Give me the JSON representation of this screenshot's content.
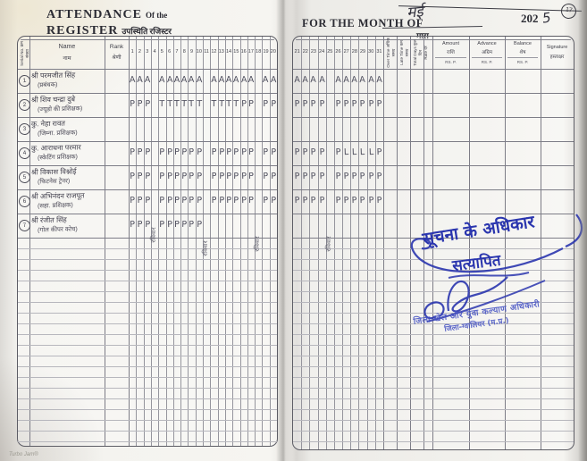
{
  "meta": {
    "page_number": "17"
  },
  "left_page": {
    "title_line1_big": "ATTENDANCE",
    "title_line1_small": "Of the",
    "title_line2_big": "REGISTER",
    "title_line2_hi": "उपस्थिति रजिस्टर",
    "header": {
      "serial_en": "Serial No.",
      "serial_hi": "क्रम संख्या",
      "name_en": "Name",
      "name_hi": "नाम",
      "rank_en": "Rank",
      "rank_hi": "श्रेणी",
      "days": [
        "1",
        "2",
        "3",
        "4",
        "5",
        "6",
        "7",
        "8",
        "9",
        "10",
        "11",
        "12",
        "13",
        "14",
        "15",
        "16",
        "17",
        "18",
        "19",
        "20"
      ]
    },
    "sunday_label": "रविवार",
    "rows": [
      {
        "serial": "1",
        "name": "श्री परमजीत सिंह",
        "role": "(प्रबंधक)",
        "marks": [
          "A",
          "A",
          "A",
          "",
          "A",
          "A",
          "A",
          "A",
          "A",
          "A",
          "",
          "A",
          "A",
          "A",
          "A",
          "A",
          "A",
          "",
          "A",
          "A"
        ]
      },
      {
        "serial": "2",
        "name": "श्री शिव चन्द्रा दुबे",
        "role": "(ज्यूडो की प्रशिक्षक)",
        "marks": [
          "P",
          "P",
          "P",
          "",
          "T",
          "T",
          "T",
          "T",
          "T",
          "T",
          "",
          "T",
          "T",
          "T",
          "T",
          "P",
          "P",
          "",
          "P",
          "P"
        ]
      },
      {
        "serial": "3",
        "name": "कु. नेहा रावत",
        "role": "(जिम्ना. प्रशिक्षक)",
        "marks": [
          "",
          "",
          "",
          "",
          "",
          "",
          "",
          "",
          "",
          "",
          "",
          "",
          "",
          "",
          "",
          "",
          "",
          "",
          "",
          ""
        ]
      },
      {
        "serial": "4",
        "name": "कु. आराधना परमार",
        "role": "(स्केटिंग प्रशिक्षक)",
        "marks": [
          "P",
          "P",
          "P",
          "",
          "P",
          "P",
          "P",
          "P",
          "P",
          "P",
          "",
          "P",
          "P",
          "P",
          "P",
          "P",
          "P",
          "",
          "P",
          "P"
        ]
      },
      {
        "serial": "5",
        "name": "श्री विकास विश्नोई",
        "role": "(फिटनेस ट्रेनर)",
        "marks": [
          "P",
          "P",
          "P",
          "",
          "P",
          "P",
          "P",
          "P",
          "P",
          "P",
          "",
          "P",
          "P",
          "P",
          "P",
          "P",
          "P",
          "",
          "P",
          "P"
        ]
      },
      {
        "serial": "6",
        "name": "श्री अभिनंदन राजपूत",
        "role": "(सहा. प्रशिक्षक)",
        "marks": [
          "P",
          "P",
          "P",
          "",
          "P",
          "P",
          "P",
          "P",
          "P",
          "P",
          "",
          "P",
          "P",
          "P",
          "P",
          "P",
          "P",
          "",
          "P",
          "P"
        ]
      },
      {
        "serial": "7",
        "name": "श्री रंजीत सिंह",
        "role": "(गोल कीपर कोच)",
        "marks": [
          "P",
          "P",
          "P",
          "",
          "P",
          "P",
          "P",
          "P",
          "P",
          "P",
          "",
          "",
          "",
          "",
          "",
          "",
          "",
          "",
          "",
          ""
        ]
      }
    ]
  },
  "right_page": {
    "title": "FOR THE MONTH OF",
    "month_value": "मई",
    "month_label": "मास",
    "year_printed": "202",
    "year_written": "5",
    "header": {
      "days": [
        "21",
        "22",
        "23",
        "24",
        "25",
        "26",
        "27",
        "28",
        "29",
        "30",
        "31"
      ],
      "over_time_en": "Over Time",
      "over_time_hi": "अधिक समय",
      "late_time_en": "Late Time",
      "late_time_hi": "कम समय",
      "total_days_en": "Total Days",
      "total_days_hi": "कुल दिन",
      "rate_en": "Rate",
      "rate_hi": "दर",
      "amount_en": "Amount",
      "amount_hi": "राशि",
      "amount_sub": "RS.   P.",
      "advance_en": "Advance",
      "advance_hi": "अग्रिम",
      "advance_sub": "RS.   P.",
      "balance_en": "Balance",
      "balance_hi": "शेष",
      "balance_sub": "RS.   P.",
      "signature_en": "Signature",
      "signature_hi": "हस्ताक्षर"
    },
    "sunday_label": "रविवार",
    "rows": [
      {
        "marks": [
          "A",
          "A",
          "A",
          "A",
          "",
          "A",
          "A",
          "A",
          "A",
          "A",
          "A"
        ]
      },
      {
        "marks": [
          "P",
          "P",
          "P",
          "P",
          "",
          "P",
          "P",
          "P",
          "P",
          "P",
          "P"
        ]
      },
      {
        "marks": [
          "",
          "",
          "",
          "",
          "",
          "",
          "",
          "",
          "",
          "",
          ""
        ]
      },
      {
        "marks": [
          "P",
          "P",
          "P",
          "P",
          "",
          "P",
          "L",
          "L",
          "L",
          "L",
          "P"
        ]
      },
      {
        "marks": [
          "P",
          "P",
          "P",
          "P",
          "",
          "P",
          "P",
          "P",
          "P",
          "P",
          "P"
        ]
      },
      {
        "marks": [
          "P",
          "P",
          "P",
          "P",
          "",
          "P",
          "P",
          "P",
          "P",
          "P",
          "P"
        ]
      },
      {
        "marks": [
          "",
          "",
          "",
          "",
          "",
          "",
          "",
          "",
          "",
          "",
          ""
        ]
      }
    ]
  },
  "annotations": {
    "rti": "सूचना के अधिकार",
    "verified": "सत्यापित",
    "stamp_line1": "जिला खेल और युवा कल्याण अधिकारी",
    "stamp_line2": "जिला-ग्वालियर (म.प्र.)"
  },
  "footer_mark": "Turbo Jam®"
}
